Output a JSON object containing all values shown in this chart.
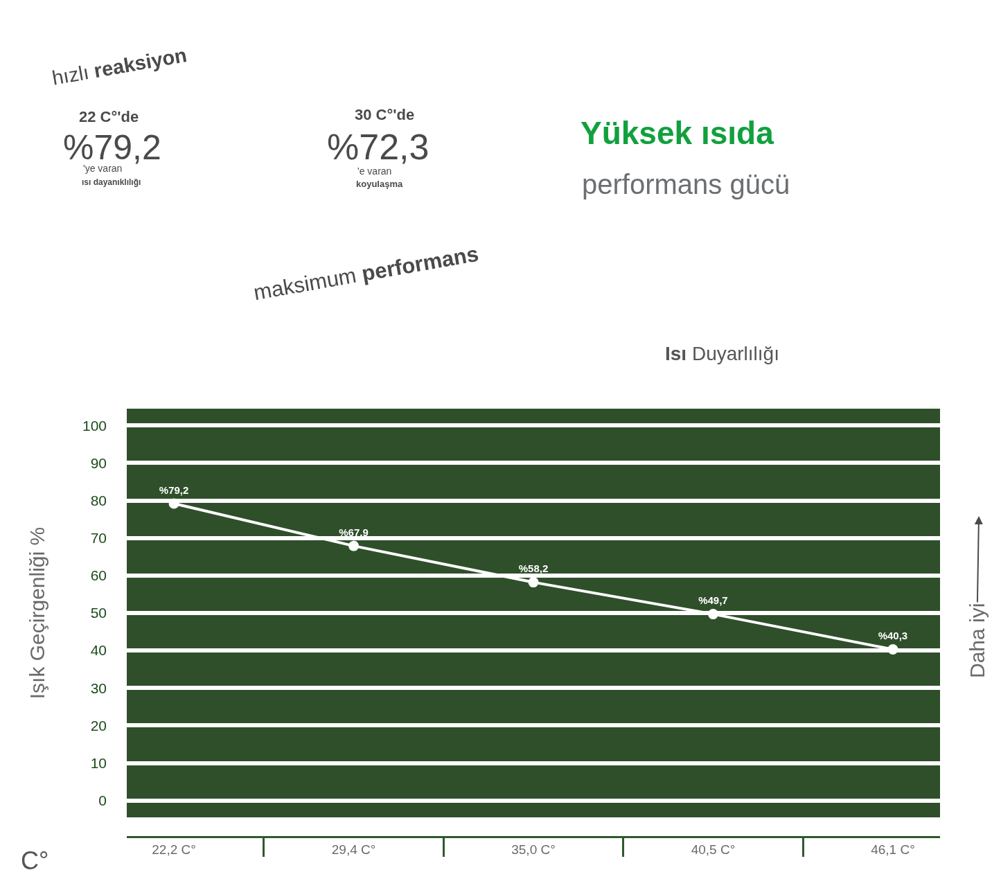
{
  "chart_data": {
    "type": "line",
    "title": "Yüksek ısıda",
    "subtitle": "performans gücü",
    "xlabel": "C°",
    "ylabel": "Işık Geçirgenliği %",
    "annotations": [
      "hızlı reaksiyon",
      "22 C°'de",
      "%79,2",
      "'ye varan",
      "ısı dayanıklılığı",
      "30 C°'de",
      "%72,3",
      "'e varan",
      "koyulaşma",
      "maksimum performans",
      "Isı Duyarlılığı",
      "Daha iyi"
    ],
    "categories": [
      "22,2 C°",
      "29,4 C°",
      "35,0 C°",
      "40,5 C°",
      "46,1 C°"
    ],
    "series": [
      {
        "color": "#ffffff",
        "values": [
          79.2,
          67.9,
          58.2,
          49.7,
          40.3
        ],
        "value_labels": [
          "%79,2",
          "%67,9",
          "%58,2",
          "%49,7",
          "%40,3"
        ]
      }
    ],
    "ylim": [
      -4.5,
      104.5
    ],
    "yticks": [
      0,
      10,
      20,
      30,
      40,
      50,
      60,
      70,
      80,
      90,
      100
    ],
    "grid": "y",
    "marker": "circle",
    "line_style": "solid"
  }
}
